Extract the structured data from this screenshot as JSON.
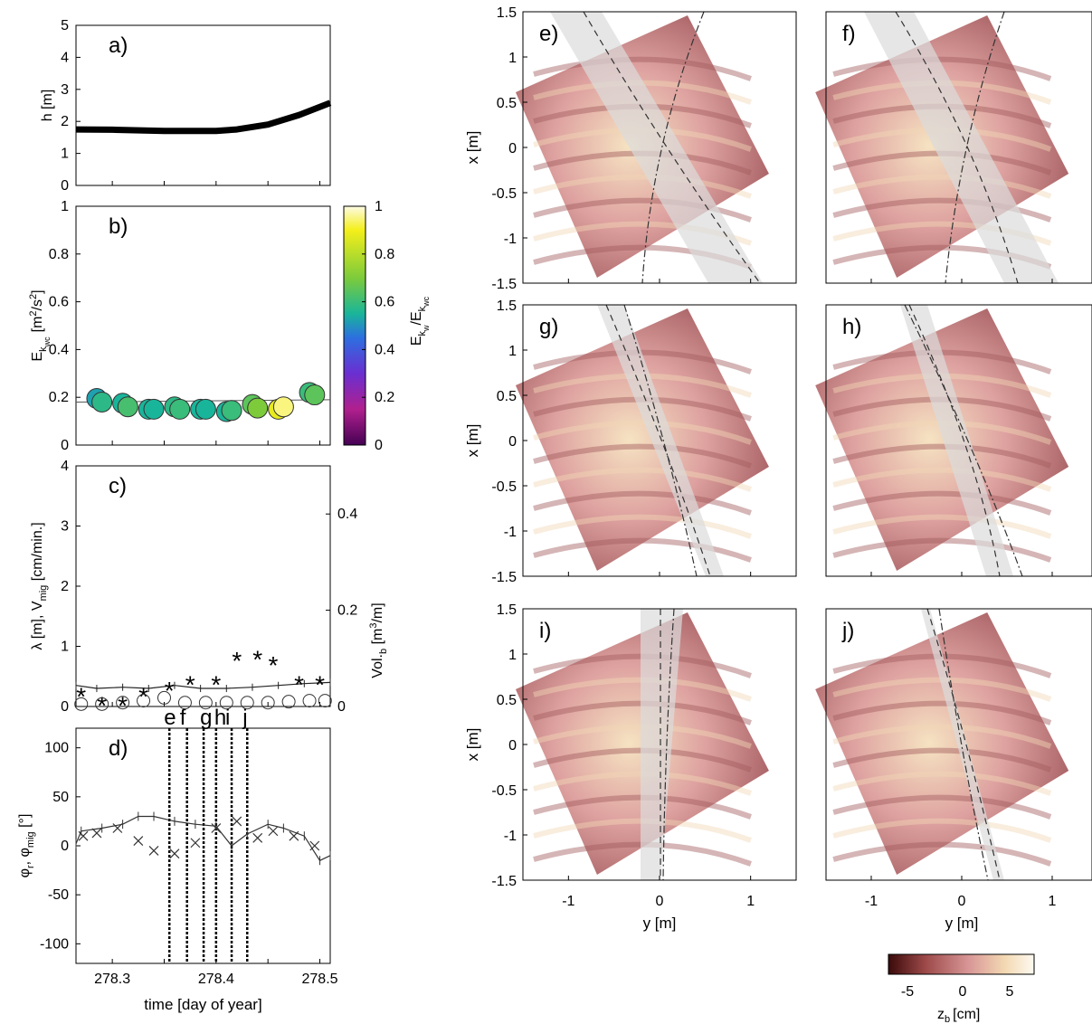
{
  "figure": {
    "xlabel_left": "time [day of year]",
    "xlabel_map": "y [m]",
    "ylabel_map": "x [m]",
    "colorbar_map_label": "z",
    "colorbar_map_label_sub": "b",
    "colorbar_map_label_unit": "[cm]",
    "colorbar_map_ticks": [
      "-5",
      "0",
      "5"
    ],
    "colorbar_energy_label": "E",
    "colorbar_energy_ticks": [
      "0",
      "0.2",
      "0.4",
      "0.6",
      "0.8",
      "1"
    ],
    "event_markers": [
      "e",
      "f",
      "g",
      "h",
      "i",
      "j"
    ]
  },
  "chart_data": [
    {
      "id": "a",
      "type": "line",
      "panel_label": "a)",
      "ylabel": "h [m]",
      "ylim": [
        0,
        5
      ],
      "yticks": [
        0,
        1,
        2,
        3,
        4,
        5
      ],
      "xlim": [
        278.265,
        278.51
      ],
      "x": [
        278.265,
        278.3,
        278.35,
        278.4,
        278.42,
        278.45,
        278.48,
        278.51
      ],
      "series": [
        {
          "values": [
            1.75,
            1.74,
            1.7,
            1.7,
            1.75,
            1.9,
            2.2,
            2.58
          ],
          "color": "#000000"
        }
      ]
    },
    {
      "id": "b",
      "type": "scatter",
      "panel_label": "b)",
      "ylabel": "E",
      "ylim": [
        0,
        1
      ],
      "yticks": [
        0,
        0.2,
        0.4,
        0.6,
        0.8,
        1
      ],
      "xlim": [
        278.265,
        278.51
      ],
      "line": {
        "x": [
          278.265,
          278.51
        ],
        "y": [
          0.18,
          0.19
        ]
      },
      "points": [
        {
          "x": 278.285,
          "y": 0.195,
          "c": 0.52
        },
        {
          "x": 278.29,
          "y": 0.18,
          "c": 0.58
        },
        {
          "x": 278.31,
          "y": 0.175,
          "c": 0.55
        },
        {
          "x": 278.315,
          "y": 0.16,
          "c": 0.62
        },
        {
          "x": 278.335,
          "y": 0.15,
          "c": 0.55
        },
        {
          "x": 278.34,
          "y": 0.15,
          "c": 0.55
        },
        {
          "x": 278.36,
          "y": 0.16,
          "c": 0.58
        },
        {
          "x": 278.365,
          "y": 0.15,
          "c": 0.6
        },
        {
          "x": 278.385,
          "y": 0.15,
          "c": 0.55
        },
        {
          "x": 278.39,
          "y": 0.15,
          "c": 0.55
        },
        {
          "x": 278.41,
          "y": 0.14,
          "c": 0.55
        },
        {
          "x": 278.415,
          "y": 0.145,
          "c": 0.6
        },
        {
          "x": 278.435,
          "y": 0.17,
          "c": 0.65
        },
        {
          "x": 278.44,
          "y": 0.155,
          "c": 0.7
        },
        {
          "x": 278.46,
          "y": 0.15,
          "c": 0.88
        },
        {
          "x": 278.465,
          "y": 0.16,
          "c": 0.95
        },
        {
          "x": 278.49,
          "y": 0.22,
          "c": 0.6
        },
        {
          "x": 278.495,
          "y": 0.21,
          "c": 0.65
        }
      ]
    },
    {
      "id": "c",
      "type": "line",
      "panel_label": "c)",
      "ylabel": "λ [m], V",
      "ylim": [
        0,
        4
      ],
      "yticks": [
        0,
        1,
        2,
        3,
        4
      ],
      "ylabel_right": "Vol.",
      "ylim_right": [
        0,
        0.5
      ],
      "yticks_right": [
        0,
        0.2,
        0.4
      ],
      "xlim": [
        278.265,
        278.51
      ],
      "lambda_line": {
        "x": [
          278.265,
          278.285,
          278.31,
          278.335,
          278.36,
          278.385,
          278.41,
          278.435,
          278.46,
          278.485,
          278.51
        ],
        "y": [
          0.35,
          0.3,
          0.32,
          0.3,
          0.35,
          0.3,
          0.3,
          0.32,
          0.35,
          0.38,
          0.4
        ]
      },
      "vmig_stars": {
        "x": [
          278.27,
          278.29,
          278.31,
          278.33,
          278.355,
          278.375,
          278.4,
          278.42,
          278.44,
          278.455,
          278.48,
          278.5
        ],
        "y": [
          0.2,
          0.05,
          0.05,
          0.2,
          0.3,
          0.4,
          0.4,
          0.8,
          0.82,
          0.72,
          0.4,
          0.4
        ]
      },
      "vol_circles": {
        "x": [
          278.27,
          278.29,
          278.31,
          278.33,
          278.35,
          278.37,
          278.39,
          278.41,
          278.43,
          278.45,
          278.47,
          278.49,
          278.505
        ],
        "y": [
          0.005,
          0.005,
          0.008,
          0.012,
          0.018,
          0.008,
          0.008,
          0.008,
          0.008,
          0.008,
          0.01,
          0.012,
          0.012
        ]
      }
    },
    {
      "id": "d",
      "type": "line",
      "panel_label": "d)",
      "ylabel": "φ",
      "ylim": [
        -120,
        120
      ],
      "yticks": [
        -100,
        -50,
        0,
        50,
        100
      ],
      "xlim": [
        278.265,
        278.51
      ],
      "xticks": [
        278.3,
        278.35,
        278.4,
        278.45,
        278.5
      ],
      "xticklabels": [
        "278.3",
        "",
        "278.4",
        "",
        "278.5"
      ],
      "phi_r": {
        "x": [
          278.265,
          278.27,
          278.29,
          278.31,
          278.325,
          278.34,
          278.36,
          278.38,
          278.4,
          278.415,
          278.43,
          278.45,
          278.465,
          278.485,
          278.5,
          278.51
        ],
        "y": [
          2,
          15,
          18,
          22,
          30,
          30,
          25,
          22,
          20,
          0,
          12,
          22,
          18,
          10,
          -15,
          -10
        ]
      },
      "phi_mig_x": {
        "x": [
          278.272,
          278.285,
          278.305,
          278.325,
          278.34,
          278.36,
          278.38,
          278.4,
          278.42,
          278.44,
          278.455,
          278.475,
          278.495
        ],
        "y": [
          10,
          13,
          18,
          5,
          -5,
          -8,
          3,
          18,
          25,
          8,
          15,
          10,
          0
        ]
      },
      "vlines": [
        278.355,
        278.372,
        278.388,
        278.4,
        278.415,
        278.43
      ]
    }
  ],
  "maps": [
    {
      "id": "e",
      "label": "e)",
      "ylabel": "x [m]",
      "show_y": true,
      "show_x": false,
      "xlabel": ""
    },
    {
      "id": "f",
      "label": "f)",
      "ylabel": "",
      "show_y": false,
      "show_x": false,
      "xlabel": ""
    },
    {
      "id": "g",
      "label": "g)",
      "ylabel": "x [m]",
      "show_y": true,
      "show_x": false,
      "xlabel": ""
    },
    {
      "id": "h",
      "label": "h)",
      "ylabel": "",
      "show_y": false,
      "show_x": false,
      "xlabel": ""
    },
    {
      "id": "i",
      "label": "i)",
      "ylabel": "x [m]",
      "show_y": true,
      "show_x": true,
      "xlabel": "y [m]"
    },
    {
      "id": "j",
      "label": "j)",
      "ylabel": "",
      "show_y": false,
      "show_x": true,
      "xlabel": "y [m]"
    }
  ],
  "map_axes": {
    "lim": [
      -1.5,
      1.5
    ],
    "yticks": [
      "1.5",
      "1",
      "0.5",
      "0",
      "-0.5",
      "-1",
      "-1.5"
    ],
    "xticks": [
      "-1",
      "0",
      "1"
    ]
  }
}
